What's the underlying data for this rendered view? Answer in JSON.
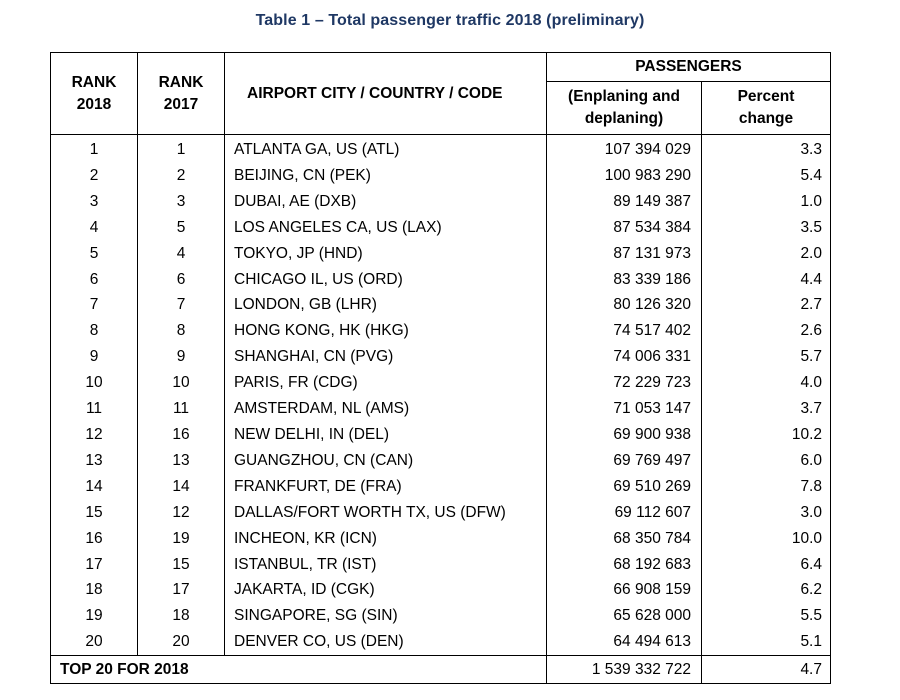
{
  "title": "Table 1 – Total passenger traffic 2018 (preliminary)",
  "headers": {
    "rank2018_line1": "RANK",
    "rank2018_line2": "2018",
    "rank2017_line1": "RANK",
    "rank2017_line2": "2017",
    "city": "AIRPORT CITY / COUNTRY / CODE",
    "passengers": "PASSENGERS",
    "enplaning_line1": "(Enplaning and",
    "enplaning_line2": "deplaning)",
    "percent_line1": "Percent",
    "percent_line2": "change"
  },
  "rows": [
    {
      "rank2018": "1",
      "rank2017": "1",
      "city": "ATLANTA GA, US (ATL)",
      "passengers": "107 394 029",
      "change": "3.3"
    },
    {
      "rank2018": "2",
      "rank2017": "2",
      "city": "BEIJING, CN (PEK)",
      "passengers": "100 983 290",
      "change": "5.4"
    },
    {
      "rank2018": "3",
      "rank2017": "3",
      "city": "DUBAI, AE (DXB)",
      "passengers": "89 149 387",
      "change": "1.0"
    },
    {
      "rank2018": "4",
      "rank2017": "5",
      "city": "LOS ANGELES CA, US (LAX)",
      "passengers": "87 534 384",
      "change": "3.5"
    },
    {
      "rank2018": "5",
      "rank2017": "4",
      "city": "TOKYO, JP (HND)",
      "passengers": "87 131 973",
      "change": "2.0"
    },
    {
      "rank2018": "6",
      "rank2017": "6",
      "city": "CHICAGO IL, US (ORD)",
      "passengers": "83 339 186",
      "change": "4.4"
    },
    {
      "rank2018": "7",
      "rank2017": "7",
      "city": "LONDON, GB (LHR)",
      "passengers": "80 126 320",
      "change": "2.7"
    },
    {
      "rank2018": "8",
      "rank2017": "8",
      "city": "HONG KONG, HK (HKG)",
      "passengers": "74 517 402",
      "change": "2.6"
    },
    {
      "rank2018": "9",
      "rank2017": "9",
      "city": "SHANGHAI, CN (PVG)",
      "passengers": "74 006 331",
      "change": "5.7"
    },
    {
      "rank2018": "10",
      "rank2017": "10",
      "city": "PARIS, FR (CDG)",
      "passengers": "72 229 723",
      "change": "4.0"
    },
    {
      "rank2018": "11",
      "rank2017": "11",
      "city": "AMSTERDAM, NL (AMS)",
      "passengers": "71 053 147",
      "change": "3.7"
    },
    {
      "rank2018": "12",
      "rank2017": "16",
      "city": "NEW DELHI, IN (DEL)",
      "passengers": "69 900 938",
      "change": "10.2"
    },
    {
      "rank2018": "13",
      "rank2017": "13",
      "city": "GUANGZHOU, CN (CAN)",
      "passengers": "69 769 497",
      "change": "6.0"
    },
    {
      "rank2018": "14",
      "rank2017": "14",
      "city": "FRANKFURT, DE (FRA)",
      "passengers": "69 510 269",
      "change": "7.8"
    },
    {
      "rank2018": "15",
      "rank2017": "12",
      "city": "DALLAS/FORT WORTH TX, US (DFW)",
      "passengers": "69 112 607",
      "change": "3.0"
    },
    {
      "rank2018": "16",
      "rank2017": "19",
      "city": "INCHEON, KR (ICN)",
      "passengers": "68 350 784",
      "change": "10.0"
    },
    {
      "rank2018": "17",
      "rank2017": "15",
      "city": "ISTANBUL, TR (IST)",
      "passengers": "68 192 683",
      "change": "6.4"
    },
    {
      "rank2018": "18",
      "rank2017": "17",
      "city": "JAKARTA, ID (CGK)",
      "passengers": "66 908 159",
      "change": "6.2"
    },
    {
      "rank2018": "19",
      "rank2017": "18",
      "city": "SINGAPORE, SG (SIN)",
      "passengers": "65 628 000",
      "change": "5.5"
    },
    {
      "rank2018": "20",
      "rank2017": "20",
      "city": "DENVER CO, US (DEN)",
      "passengers": "64 494 613",
      "change": "5.1"
    }
  ],
  "total": {
    "label": "TOP 20 FOR 2018",
    "passengers": "1 539 332 722",
    "change": "4.7"
  },
  "colors": {
    "title": "#1f3864",
    "border": "#000000",
    "text": "#000000"
  }
}
